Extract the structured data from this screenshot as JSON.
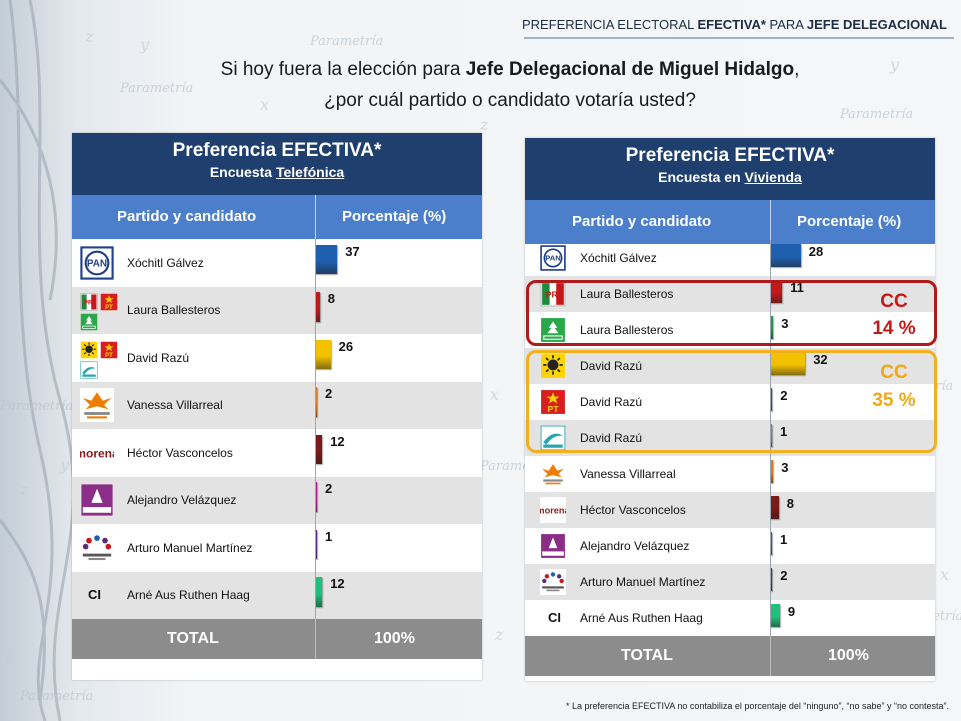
{
  "header": {
    "title_pre": "PREFERENCIA ELECTORAL",
    "title_bold1": "EFECTIVA*",
    "title_mid": "PARA",
    "title_bold2": "JEFE DELEGACIONAL"
  },
  "question": {
    "line1_pre": "Si hoy fuera la elección para",
    "line1_bold": "Jefe Delegacional de Miguel Hidalgo",
    "line1_post": ",",
    "line2": "¿por cuál partido o candidato votaría usted?"
  },
  "colors": {
    "title_bg": "#1f3f6e",
    "header_bg": "#4b7fcc",
    "total_bg": "#8c8c8c",
    "cc_red": "#b01a1a",
    "cc_yellow": "#f0b020"
  },
  "panels": [
    {
      "title": "Preferencia EFECTIVA*",
      "subtitle_pre": "Encuesta",
      "subtitle_underlined": "Telefónica",
      "col1": "Partido y candidato",
      "col2": "Porcentaje (%)",
      "total_label": "TOTAL",
      "total_value": "100%"
    },
    {
      "title": "Preferencia EFECTIVA*",
      "subtitle_pre": "Encuesta en",
      "subtitle_underlined": "Vivienda",
      "col1": "Partido y candidato",
      "col2": "Porcentaje (%)",
      "total_label": "TOTAL",
      "total_value": "100%"
    }
  ],
  "coalitions": [
    {
      "label": "CC",
      "value": "14 %",
      "color": "#b01a1a"
    },
    {
      "label": "CC",
      "value": "35 %",
      "color": "#f0b020"
    }
  ],
  "footnote": "* La preferencia EFECTIVA no contabiliza el porcentaje del “ninguno”, “no sabe” y “no contesta”.",
  "chart_data": [
    {
      "type": "bar",
      "orientation": "horizontal",
      "title": "Preferencia EFECTIVA*",
      "subtitle": "Encuesta Telefónica",
      "xlabel": "Porcentaje (%)",
      "ylabel": "Partido y candidato",
      "rows": [
        {
          "logos": [
            "pan"
          ],
          "label": "Xóchitl Gálvez",
          "value": 37,
          "color": "#1f5fb0"
        },
        {
          "logos": [
            "pri",
            "pt_small",
            "verde"
          ],
          "label": "Laura Ballesteros",
          "value": 8,
          "color": "#c51818"
        },
        {
          "logos": [
            "prd",
            "pt",
            "alianza"
          ],
          "label": "David Razú",
          "value": 26,
          "color": "#f2c200"
        },
        {
          "logos": [
            "morenaciudadano"
          ],
          "label": "Vanessa Villarreal",
          "value": 2,
          "color": "#e07820"
        },
        {
          "logos": [
            "morena"
          ],
          "label": "Héctor Vasconcelos",
          "value": 12,
          "color": "#7a1a1a"
        },
        {
          "logos": [
            "humanista"
          ],
          "label": "Alejandro Velázquez",
          "value": 2,
          "color": "#b0208a"
        },
        {
          "logos": [
            "encuentro"
          ],
          "label": "Arturo Manuel Martínez",
          "value": 1,
          "color": "#5a2d82"
        },
        {
          "logos": [
            "ci"
          ],
          "label": "Arné Aus Ruthen Haag",
          "value": 12,
          "color": "#21c07a"
        }
      ],
      "total": {
        "label": "TOTAL",
        "value": "100%"
      }
    },
    {
      "type": "bar",
      "orientation": "horizontal",
      "title": "Preferencia EFECTIVA*",
      "subtitle": "Encuesta en Vivienda",
      "xlabel": "Porcentaje (%)",
      "ylabel": "Partido y candidato",
      "rows": [
        {
          "logos": [
            "pan"
          ],
          "label": "Xóchitl Gálvez",
          "value": 28,
          "color": "#1f5fb0"
        },
        {
          "logos": [
            "pri"
          ],
          "label": "Laura Ballesteros",
          "value": 11,
          "color": "#c51818"
        },
        {
          "logos": [
            "verde"
          ],
          "label": "Laura Ballesteros",
          "value": 3,
          "color": "#1e9a4a"
        },
        {
          "logos": [
            "prd"
          ],
          "label": "David Razú",
          "value": 32,
          "color": "#f2c200"
        },
        {
          "logos": [
            "pt"
          ],
          "label": "David Razú",
          "value": 2,
          "color": "#c51818"
        },
        {
          "logos": [
            "alianza"
          ],
          "label": "David Razú",
          "value": 1,
          "color": "#2aa6b0"
        },
        {
          "logos": [
            "morenaciudadano"
          ],
          "label": "Vanessa Villarreal",
          "value": 3,
          "color": "#e07820"
        },
        {
          "logos": [
            "morena"
          ],
          "label": "Héctor Vasconcelos",
          "value": 8,
          "color": "#7a1a1a"
        },
        {
          "logos": [
            "humanista"
          ],
          "label": "Alejandro Velázquez",
          "value": 1,
          "color": "#b0208a"
        },
        {
          "logos": [
            "encuentro"
          ],
          "label": "Arturo Manuel Martínez",
          "value": 2,
          "color": "#5a2d82"
        },
        {
          "logos": [
            "ci"
          ],
          "label": "Arné Aus Ruthen Haag",
          "value": 9,
          "color": "#21c07a"
        }
      ],
      "total": {
        "label": "TOTAL",
        "value": "100%"
      }
    }
  ]
}
